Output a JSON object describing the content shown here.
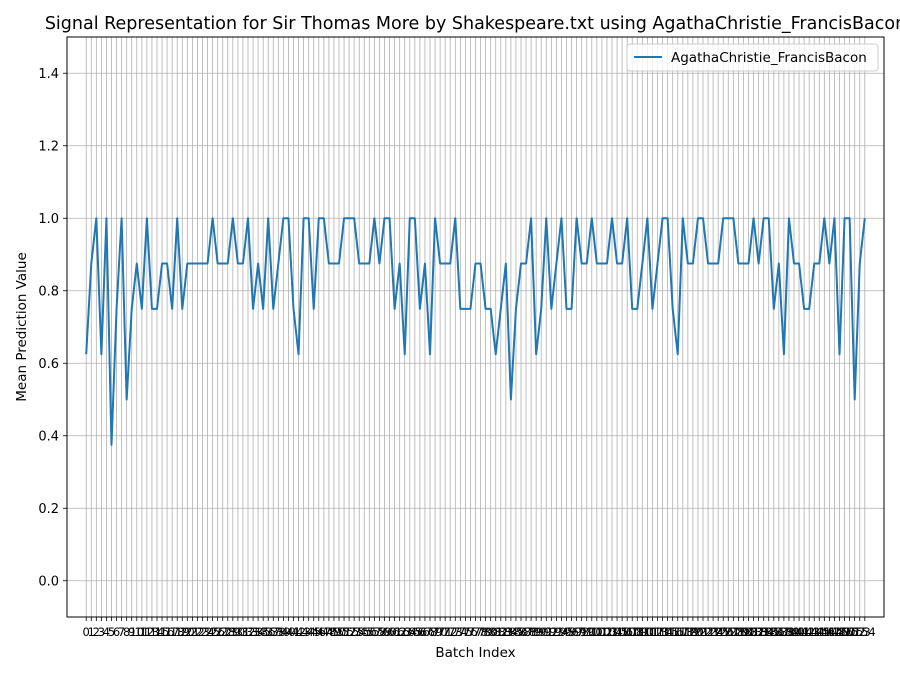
{
  "chart_data": {
    "type": "line",
    "title": "Signal Representation for Sir Thomas More by Shakespeare.txt using AgathaChristie_FrancisBacon",
    "xlabel": "Batch Index",
    "ylabel": "Mean Prediction Value",
    "xlim": [
      -3.8,
      157.8
    ],
    "ylim": [
      -0.1,
      1.5
    ],
    "yticks": [
      0.0,
      0.2,
      0.4,
      0.6,
      0.8,
      1.0,
      1.2,
      1.4
    ],
    "ytick_labels": [
      "0.0",
      "0.2",
      "0.4",
      "0.6",
      "0.8",
      "1.0",
      "1.2",
      "1.4"
    ],
    "xticks_every_index": true,
    "grid": true,
    "legend": "top-right",
    "line_color": "#1f77b4",
    "grid_color": "#b0b0b0",
    "series": [
      {
        "name": "AgathaChristie_FrancisBacon",
        "color": "#1f77b4",
        "values": [
          0.625,
          0.875,
          1.0,
          0.625,
          1.0,
          0.375,
          0.75,
          1.0,
          0.5,
          0.75,
          0.875,
          0.75,
          1.0,
          0.75,
          0.75,
          0.875,
          0.875,
          0.75,
          1.0,
          0.75,
          0.875,
          0.875,
          0.875,
          0.875,
          0.875,
          1.0,
          0.875,
          0.875,
          0.875,
          1.0,
          0.875,
          0.875,
          1.0,
          0.75,
          0.875,
          0.75,
          1.0,
          0.75,
          0.875,
          1.0,
          1.0,
          0.75,
          0.625,
          1.0,
          1.0,
          0.75,
          1.0,
          1.0,
          0.875,
          0.875,
          0.875,
          1.0,
          1.0,
          1.0,
          0.875,
          0.875,
          0.875,
          1.0,
          0.875,
          1.0,
          1.0,
          0.75,
          0.875,
          0.625,
          1.0,
          1.0,
          0.75,
          0.875,
          0.625,
          1.0,
          0.875,
          0.875,
          0.875,
          1.0,
          0.75,
          0.75,
          0.75,
          0.875,
          0.875,
          0.75,
          0.75,
          0.625,
          0.75,
          0.875,
          0.5,
          0.75,
          0.875,
          0.875,
          1.0,
          0.625,
          0.75,
          1.0,
          0.75,
          0.875,
          1.0,
          0.75,
          0.75,
          1.0,
          0.875,
          0.875,
          1.0,
          0.875,
          0.875,
          0.875,
          1.0,
          0.875,
          0.875,
          1.0,
          0.75,
          0.75,
          0.875,
          1.0,
          0.75,
          0.875,
          1.0,
          1.0,
          0.75,
          0.625,
          1.0,
          0.875,
          0.875,
          1.0,
          1.0,
          0.875,
          0.875,
          0.875,
          1.0,
          1.0,
          1.0,
          0.875,
          0.875,
          0.875,
          1.0,
          0.875,
          1.0,
          1.0,
          0.75,
          0.875,
          0.625,
          1.0,
          0.875,
          0.875,
          0.75,
          0.75,
          0.875,
          0.875,
          1.0,
          0.875,
          1.0,
          0.625,
          1.0,
          1.0,
          0.5,
          0.875,
          1.0
        ]
      }
    ]
  }
}
